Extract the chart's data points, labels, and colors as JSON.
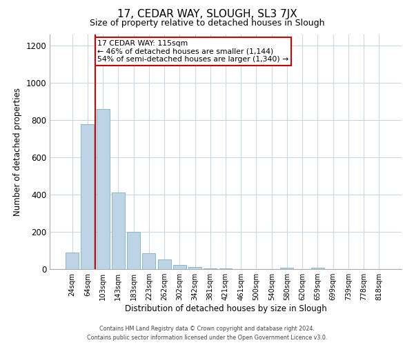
{
  "title": "17, CEDAR WAY, SLOUGH, SL3 7JX",
  "subtitle": "Size of property relative to detached houses in Slough",
  "xlabel": "Distribution of detached houses by size in Slough",
  "ylabel": "Number of detached properties",
  "bar_labels": [
    "24sqm",
    "64sqm",
    "103sqm",
    "143sqm",
    "183sqm",
    "223sqm",
    "262sqm",
    "302sqm",
    "342sqm",
    "381sqm",
    "421sqm",
    "461sqm",
    "500sqm",
    "540sqm",
    "580sqm",
    "620sqm",
    "659sqm",
    "699sqm",
    "739sqm",
    "778sqm",
    "818sqm"
  ],
  "bar_values": [
    90,
    780,
    860,
    410,
    200,
    85,
    52,
    22,
    10,
    5,
    2,
    1,
    0,
    0,
    8,
    0,
    8,
    0,
    0,
    0,
    0
  ],
  "bar_color": "#bdd4e4",
  "bar_edge_color": "#7faec8",
  "vline_x": 1.5,
  "vline_color": "#cc0000",
  "annotation_title": "17 CEDAR WAY: 115sqm",
  "annotation_line1": "← 46% of detached houses are smaller (1,144)",
  "annotation_line2": "54% of semi-detached houses are larger (1,340) →",
  "annotation_box_color": "#ffffff",
  "annotation_box_edge": "#cc0000",
  "ylim": [
    0,
    1260
  ],
  "yticks": [
    0,
    200,
    400,
    600,
    800,
    1000,
    1200
  ],
  "footer1": "Contains HM Land Registry data © Crown copyright and database right 2024.",
  "footer2": "Contains public sector information licensed under the Open Government Licence v3.0.",
  "bg_color": "#ffffff",
  "grid_color": "#c8d8e8"
}
